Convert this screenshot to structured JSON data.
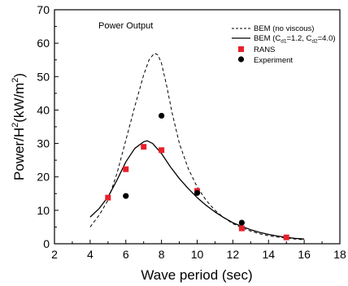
{
  "chart_data": {
    "type": "line",
    "annotation": "Power Output",
    "xlabel": "Wave period (sec)",
    "ylabel_parts": {
      "base": "Power/H",
      "sup": "2",
      "unit_open": "(kW/m",
      "unit_sup": "2",
      "unit_close": ")"
    },
    "xlim": [
      2,
      18
    ],
    "ylim": [
      0,
      70
    ],
    "xticks": [
      2,
      4,
      6,
      8,
      10,
      12,
      14,
      16,
      18
    ],
    "yticks": [
      0,
      10,
      20,
      30,
      40,
      50,
      60,
      70
    ],
    "grid": false,
    "legend_position": "top-right",
    "series": [
      {
        "key": "bem_no_viscous",
        "style": "dashed-line",
        "legend": {
          "text": "BEM (no viscous)"
        },
        "x": [
          4.0,
          4.5,
          5.0,
          5.5,
          6.0,
          6.5,
          7.0,
          7.3,
          7.6,
          7.8,
          8.0,
          8.3,
          8.6,
          9.0,
          9.5,
          10.0,
          10.5,
          11.0,
          11.5,
          12.0,
          12.5,
          13.0,
          13.5,
          14.0,
          14.5,
          15.0,
          15.5,
          16.0
        ],
        "y": [
          5.0,
          8.5,
          13.0,
          21.0,
          31.0,
          41.0,
          50.5,
          55.0,
          57.0,
          56.5,
          54.0,
          47.0,
          39.0,
          30.0,
          22.5,
          17.0,
          13.0,
          10.0,
          7.8,
          6.0,
          4.8,
          3.8,
          3.0,
          2.4,
          2.0,
          1.7,
          1.4,
          1.2
        ]
      },
      {
        "key": "bem_viscous",
        "style": "solid-line",
        "legend": {
          "prefix": "BEM (C",
          "sub1": "d1",
          "mid": "=1.2, C",
          "sub2": "d2",
          "suffix": "=4.0)"
        },
        "x": [
          4.0,
          4.5,
          5.0,
          5.5,
          6.0,
          6.5,
          7.0,
          7.2,
          7.5,
          8.0,
          8.5,
          9.0,
          9.5,
          10.0,
          10.5,
          11.0,
          11.5,
          12.0,
          12.5,
          13.0,
          13.5,
          14.0,
          14.5,
          15.0,
          15.5,
          16.0
        ],
        "y": [
          8.0,
          10.5,
          14.0,
          19.0,
          24.5,
          28.5,
          30.5,
          30.8,
          30.0,
          27.0,
          23.0,
          19.5,
          16.5,
          13.8,
          11.5,
          9.5,
          7.8,
          6.3,
          5.2,
          4.2,
          3.4,
          2.8,
          2.3,
          1.9,
          1.6,
          1.4
        ]
      },
      {
        "key": "rans",
        "style": "square-marker",
        "legend": {
          "text": "RANS"
        },
        "color": "#e8202a",
        "x": [
          5.0,
          6.0,
          7.0,
          8.0,
          10.0,
          12.5,
          15.0
        ],
        "y": [
          13.8,
          22.3,
          29.0,
          28.0,
          15.8,
          4.6,
          1.9
        ]
      },
      {
        "key": "experiment",
        "style": "circle-marker",
        "legend": {
          "text": "Experiment"
        },
        "color": "#000000",
        "x": [
          6.0,
          8.0,
          10.0,
          12.5
        ],
        "y": [
          14.3,
          38.3,
          15.2,
          6.3
        ]
      }
    ]
  }
}
